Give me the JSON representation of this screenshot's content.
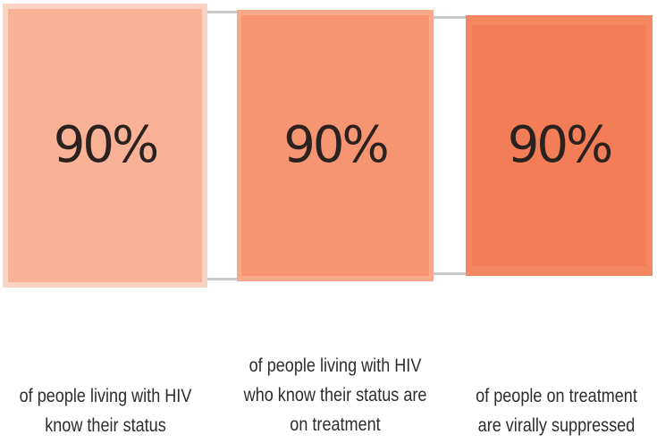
{
  "cascade": [
    {
      "percent": "90%",
      "caption_lines": [
        "of people living with HIV",
        "know their status"
      ],
      "color": "#f9b296",
      "border_color": "#fcd3c3"
    },
    {
      "percent": "90%",
      "caption_lines": [
        "of people living with HIV",
        "who know their status are",
        "on treatment"
      ],
      "color": "#f69571",
      "border_color": "#f9b296"
    },
    {
      "percent": "90%",
      "caption_lines": [
        "of people on treatment",
        "are virally suppressed"
      ],
      "color": "#f27d56",
      "border_color": "#f69571"
    }
  ],
  "connector_color": "#c8c8c8"
}
